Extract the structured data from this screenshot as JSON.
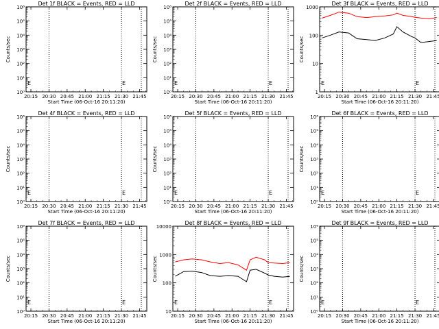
{
  "panel_title_suffix": " BLACK = Events, RED = LLD",
  "xlabel": "Start Time (06-Oct-16 20:11:20)",
  "ylabel": "Counts/sec",
  "x_ticks": [
    "20:15",
    "20:30",
    "20:45",
    "21:00",
    "21:15",
    "21:30",
    "21:45"
  ],
  "empty_yticks": [
    "10⁰",
    "10⁻¹",
    "10⁻²",
    "10⁻³",
    "10⁻⁴",
    "10⁻⁵",
    "10⁻⁶"
  ],
  "colors": {
    "events": "#000000",
    "lld": "#ff0000"
  },
  "chart_data": [
    {
      "type": "line",
      "title": "Det 1f BLACK = Events, RED = LLD",
      "ylog": true,
      "ylim": [
        1,
        1000000
      ],
      "yticks": [
        "10⁰",
        "10¹",
        "10²",
        "10³",
        "10⁴",
        "10⁵",
        "10⁶"
      ],
      "series": [],
      "marker_label": "E"
    },
    {
      "type": "line",
      "title": "Det 2f BLACK = Events, RED = LLD",
      "ylog": true,
      "ylim": [
        1,
        1000000
      ],
      "yticks": [
        "10⁰",
        "10¹",
        "10²",
        "10³",
        "10⁴",
        "10⁵",
        "10⁶"
      ],
      "series": [],
      "marker_label": "E"
    },
    {
      "type": "line",
      "title": "Det 3f BLACK = Events, RED = LLD",
      "ylog": true,
      "ylim": [
        1,
        1000
      ],
      "yticks": [
        "1",
        "10",
        "100",
        "1000"
      ],
      "x": [
        "20:13",
        "20:20",
        "20:27",
        "20:35",
        "20:42",
        "20:50",
        "20:57",
        "21:05",
        "21:12",
        "21:15",
        "21:20",
        "21:27",
        "21:30",
        "21:35",
        "21:42",
        "21:48"
      ],
      "series": [
        {
          "values": [
            400,
            500,
            650,
            600,
            450,
            420,
            450,
            480,
            520,
            600,
            500,
            450,
            430,
            400,
            380,
            420
          ]
        },
        {
          "values": [
            80,
            100,
            130,
            120,
            75,
            70,
            65,
            80,
            110,
            200,
            130,
            90,
            80,
            55,
            60,
            65
          ]
        }
      ],
      "marker_label": "E"
    },
    {
      "type": "line",
      "title": "Det 4f BLACK = Events, RED = LLD",
      "ylog": true,
      "ylim": [
        1,
        1000000
      ],
      "yticks": [
        "10⁰",
        "10¹",
        "10²",
        "10³",
        "10⁴",
        "10⁵",
        "10⁶"
      ],
      "series": [],
      "marker_label": "E"
    },
    {
      "type": "line",
      "title": "Det 5f BLACK = Events, RED = LLD",
      "ylog": true,
      "ylim": [
        1,
        1000000
      ],
      "yticks": [
        "10⁰",
        "10¹",
        "10²",
        "10³",
        "10⁴",
        "10⁵",
        "10⁶"
      ],
      "series": [],
      "marker_label": "E"
    },
    {
      "type": "line",
      "title": "Det 6f BLACK = Events, RED = LLD",
      "ylog": true,
      "ylim": [
        1,
        1000000
      ],
      "yticks": [
        "10⁰",
        "10¹",
        "10²",
        "10³",
        "10⁴",
        "10⁵",
        "10⁶"
      ],
      "series": [],
      "marker_label": "E"
    },
    {
      "type": "line",
      "title": "Det 7f BLACK = Events, RED = LLD",
      "ylog": true,
      "ylim": [
        1,
        1000000
      ],
      "yticks": [
        "10⁰",
        "10¹",
        "10²",
        "10³",
        "10⁴",
        "10⁵",
        "10⁶"
      ],
      "series": [],
      "marker_label": "E"
    },
    {
      "type": "line",
      "title": "Det 8f BLACK = Events, RED = LLD",
      "ylog": true,
      "ylim": [
        10,
        10000
      ],
      "yticks": [
        "10",
        "100",
        "1000",
        "10000"
      ],
      "x": [
        "20:13",
        "20:20",
        "20:27",
        "20:35",
        "20:42",
        "20:50",
        "20:57",
        "21:05",
        "21:12",
        "21:15",
        "21:20",
        "21:27",
        "21:30",
        "21:35",
        "21:42",
        "21:48"
      ],
      "series": [
        {
          "values": [
            550,
            650,
            700,
            650,
            550,
            480,
            520,
            430,
            280,
            650,
            800,
            650,
            520,
            500,
            480,
            520
          ]
        },
        {
          "values": [
            170,
            250,
            260,
            230,
            180,
            170,
            180,
            170,
            110,
            280,
            300,
            220,
            190,
            170,
            160,
            170
          ]
        }
      ],
      "marker_label": "E"
    },
    {
      "type": "line",
      "title": "Det 9f BLACK = Events, RED = LLD",
      "ylog": true,
      "ylim": [
        1,
        1000000
      ],
      "yticks": [
        "10⁰",
        "10¹",
        "10²",
        "10³",
        "10⁴",
        "10⁵",
        "10⁶"
      ],
      "series": [],
      "marker_label": "E"
    }
  ]
}
